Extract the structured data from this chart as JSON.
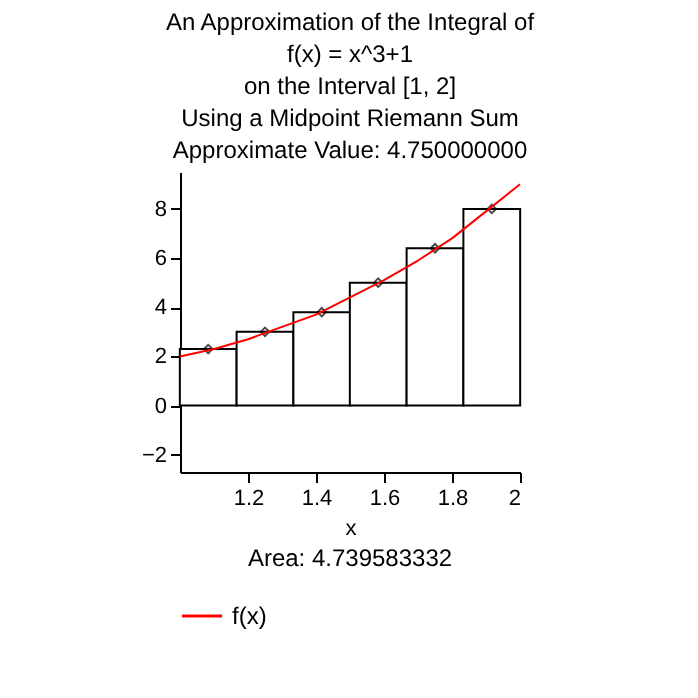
{
  "chart_data": {
    "type": "bar",
    "title": "An Approximation of the Integral of\nf(x) = x^3+1\non the Interval [1, 2]\nUsing a Midpoint Riemann Sum\nApproximate Value: 4.750000000",
    "xlabel": "x",
    "series": [
      {
        "color": "#ffffff",
        "x": [
          1.083,
          1.25,
          1.417,
          1.583,
          1.75,
          1.917
        ],
        "values": [
          2.3,
          3.0,
          3.8,
          5.0,
          6.4,
          8.0
        ]
      },
      {
        "type": "scatter",
        "color": "#000000",
        "marker": "diamond",
        "x": [
          1.083,
          1.25,
          1.417,
          1.583,
          1.75,
          1.917
        ],
        "values": [
          2.3,
          3.0,
          3.8,
          5.0,
          6.4,
          8.0
        ]
      },
      {
        "type": "line",
        "name": "f(x)",
        "color": "#ff0000",
        "x": [
          1.0,
          1.1,
          1.2,
          1.3,
          1.4,
          1.5,
          1.6,
          1.7,
          1.8,
          1.9,
          2.0
        ],
        "values": [
          2.0,
          2.3,
          2.7,
          3.2,
          3.7,
          4.4,
          5.1,
          5.9,
          6.8,
          7.9,
          9.0
        ]
      }
    ],
    "xlim": [
      1,
      2
    ],
    "xticks": [
      1.2,
      1.4,
      1.6,
      1.8,
      2
    ],
    "ylim": [
      -2.7,
      9.5
    ],
    "yticks": [
      -2,
      0,
      2,
      4,
      6,
      8
    ],
    "annotations": [
      "Area: 4.739583332"
    ],
    "legend": "bottom",
    "grid": false
  }
}
